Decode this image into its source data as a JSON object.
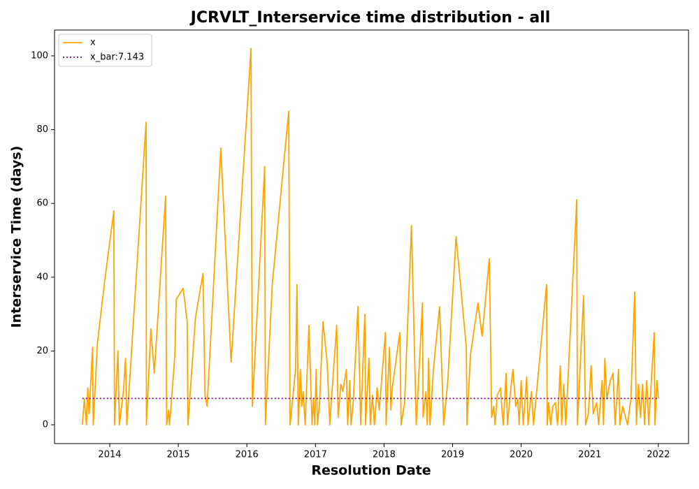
{
  "chart_data": {
    "type": "line",
    "title": "JCRVLT_Interservice time distribution - all",
    "x_label": "Resolution Date",
    "y_label": "Interservice Time (days)",
    "xlim": [
      2013.195,
      2022.44
    ],
    "ylim": [
      -5.1,
      107.0
    ],
    "xticks": [
      2014,
      2015,
      2016,
      2017,
      2018,
      2019,
      2020,
      2021,
      2022
    ],
    "yticks": [
      0,
      20,
      40,
      60,
      80,
      100
    ],
    "legend": "upper left",
    "series": [
      {
        "name": "x",
        "color": "#ffa500",
        "style": "solid",
        "x": [
          2013.6,
          2013.63,
          2013.66,
          2013.68,
          2013.7,
          2013.73,
          2013.75,
          2013.76,
          2013.82,
          2013.92,
          2014.06,
          2014.07,
          2014.12,
          2014.14,
          2014.2,
          2014.23,
          2014.25,
          2014.53,
          2014.535,
          2014.6,
          2014.65,
          2014.815,
          2014.83,
          2014.86,
          2014.87,
          2014.89,
          2014.95,
          2014.97,
          2015.07,
          2015.13,
          2015.14,
          2015.25,
          2015.36,
          2015.39,
          2015.42,
          2015.62,
          2015.77,
          2016.06,
          2016.08,
          2016.26,
          2016.27,
          2016.37,
          2016.61,
          2016.63,
          2016.71,
          2016.73,
          2016.75,
          2016.78,
          2016.8,
          2016.82,
          2016.85,
          2016.905,
          2016.95,
          2016.97,
          2016.99,
          2017.01,
          2017.03,
          2017.06,
          2017.11,
          2017.17,
          2017.21,
          2017.23,
          2017.31,
          2017.33,
          2017.37,
          2017.4,
          2017.45,
          2017.47,
          2017.5,
          2017.52,
          2017.55,
          2017.62,
          2017.66,
          2017.72,
          2017.73,
          2017.78,
          2017.8,
          2017.83,
          2017.86,
          2017.9,
          2017.93,
          2018.02,
          2018.03,
          2018.08,
          2018.1,
          2018.12,
          2018.23,
          2018.25,
          2018.3,
          2018.4,
          2018.47,
          2018.56,
          2018.57,
          2018.61,
          2018.63,
          2018.65,
          2018.67,
          2018.72,
          2018.81,
          2018.87,
          2018.93,
          2019.05,
          2019.2,
          2019.21,
          2019.26,
          2019.37,
          2019.43,
          2019.535,
          2019.57,
          2019.6,
          2019.62,
          2019.65,
          2019.7,
          2019.72,
          2019.74,
          2019.78,
          2019.8,
          2019.85,
          2019.88,
          2019.92,
          2019.95,
          2019.97,
          2020.0,
          2020.03,
          2020.08,
          2020.1,
          2020.15,
          2020.18,
          2020.37,
          2020.38,
          2020.4,
          2020.43,
          2020.46,
          2020.5,
          2020.53,
          2020.57,
          2020.59,
          2020.62,
          2020.65,
          2020.81,
          2020.82,
          2020.91,
          2020.94,
          2020.98,
          2021.02,
          2021.05,
          2021.1,
          2021.13,
          2021.18,
          2021.2,
          2021.22,
          2021.25,
          2021.3,
          2021.34,
          2021.37,
          2021.42,
          2021.44,
          2021.48,
          2021.55,
          2021.6,
          2021.655,
          2021.68,
          2021.71,
          2021.74,
          2021.77,
          2021.8,
          2021.83,
          2021.86,
          2021.94,
          2021.95,
          2021.98,
          2022.0
        ],
        "values": [
          0,
          7,
          0,
          10,
          3,
          14,
          21,
          0,
          22,
          38,
          58,
          0,
          20,
          0,
          9,
          18,
          0,
          82,
          0,
          26,
          14,
          62,
          0,
          4,
          0,
          4,
          19,
          34,
          37,
          28,
          0,
          29,
          41,
          8,
          5,
          75,
          17,
          102,
          5,
          70,
          0,
          38,
          85,
          0,
          15,
          38,
          0,
          15,
          5,
          9,
          0,
          27,
          0,
          7,
          0,
          15,
          0,
          6,
          28,
          17,
          0,
          6,
          27,
          2,
          11,
          9,
          15,
          0,
          12,
          0,
          6,
          32,
          0,
          30,
          0,
          18,
          0,
          8,
          0,
          10,
          4,
          25,
          0,
          21,
          4,
          10,
          25,
          0,
          6,
          54,
          0,
          33,
          2,
          9,
          0,
          18,
          0,
          15,
          32,
          0,
          12,
          51,
          21,
          0,
          19,
          33,
          24,
          45,
          2,
          5,
          0,
          8,
          10,
          4,
          0,
          14,
          0,
          10,
          15,
          5,
          7,
          0,
          12,
          0,
          13,
          0,
          9,
          0,
          38,
          0,
          6,
          0,
          5,
          6,
          0,
          16,
          0,
          11,
          0,
          61,
          0,
          35,
          0,
          3,
          16,
          3,
          6,
          0,
          12,
          0,
          18,
          7,
          12,
          14,
          0,
          15,
          0,
          5,
          0,
          7,
          36,
          0,
          11,
          2,
          11,
          0,
          12,
          0,
          25,
          0,
          12,
          7
        ]
      },
      {
        "name": "x_bar:7.143",
        "color": "#800080",
        "style": "dotted",
        "x": [
          2013.6,
          2022.0
        ],
        "values": [
          7.143,
          7.143
        ]
      }
    ]
  }
}
